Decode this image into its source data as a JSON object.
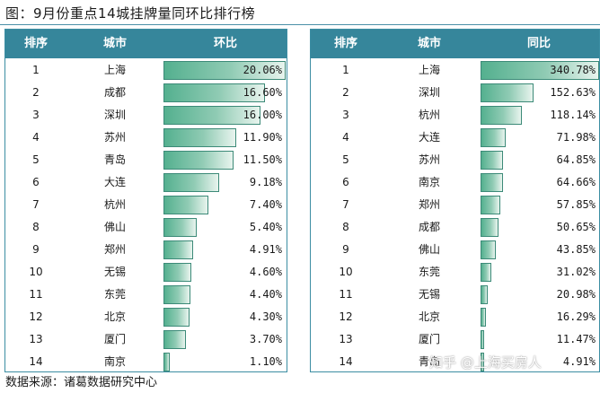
{
  "title": "图：9月份重点14城挂牌量同环比排行榜",
  "source": "数据来源：诸葛数据研究中心",
  "watermark": "知乎 @上海买房人",
  "colors": {
    "header": "#36869b",
    "border": "#3c8ea3",
    "bar": "#54b08f"
  },
  "chart_data": [
    {
      "type": "bar",
      "orientation": "horizontal",
      "headers": [
        "排序",
        "城市",
        "环比"
      ],
      "rank": [
        1,
        2,
        3,
        4,
        5,
        6,
        7,
        8,
        9,
        10,
        11,
        12,
        13,
        14
      ],
      "categories": [
        "上海",
        "成都",
        "深圳",
        "苏州",
        "青岛",
        "大连",
        "杭州",
        "佛山",
        "郑州",
        "无锡",
        "东莞",
        "北京",
        "厦门",
        "南京"
      ],
      "values": [
        20.06,
        16.6,
        16.0,
        11.9,
        11.5,
        9.18,
        7.4,
        5.4,
        4.91,
        4.6,
        4.4,
        4.3,
        3.7,
        1.1
      ],
      "value_labels": [
        "20.06%",
        "16.60%",
        "16.00%",
        "11.90%",
        "11.50%",
        "9.18%",
        "7.40%",
        "5.40%",
        "4.91%",
        "4.60%",
        "4.40%",
        "4.30%",
        "3.70%",
        "1.10%"
      ],
      "unit": "%"
    },
    {
      "type": "bar",
      "orientation": "horizontal",
      "headers": [
        "排序",
        "城市",
        "同比"
      ],
      "rank": [
        1,
        2,
        3,
        4,
        5,
        6,
        7,
        8,
        9,
        10,
        11,
        12,
        13,
        14
      ],
      "categories": [
        "上海",
        "深圳",
        "杭州",
        "大连",
        "苏州",
        "南京",
        "郑州",
        "成都",
        "佛山",
        "东莞",
        "无锡",
        "北京",
        "厦门",
        "青岛"
      ],
      "values": [
        340.78,
        152.63,
        118.14,
        71.98,
        64.85,
        64.66,
        57.85,
        50.65,
        43.85,
        31.02,
        20.98,
        16.29,
        11.47,
        4.91
      ],
      "value_labels": [
        "340.78%",
        "152.63%",
        "118.14%",
        "71.98%",
        "64.85%",
        "64.66%",
        "57.85%",
        "50.65%",
        "43.85%",
        "31.02%",
        "20.98%",
        "16.29%",
        "11.47%",
        "4.91%"
      ],
      "unit": "%"
    }
  ]
}
